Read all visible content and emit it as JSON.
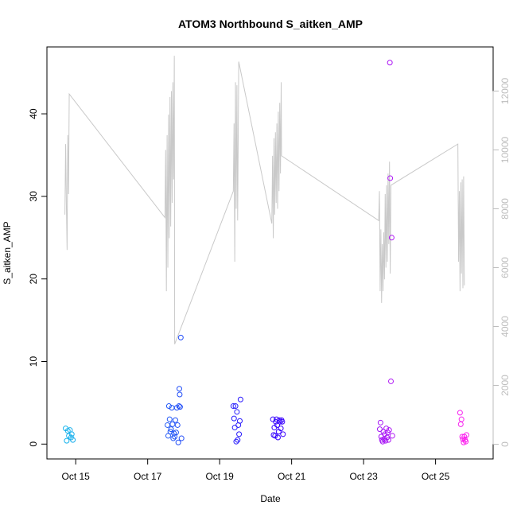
{
  "chart_data": {
    "type": "scatter",
    "title": "ATOM3 Northbound S_aitken_AMP",
    "xlabel": "Date",
    "ylabel": "S_aitken_AMP",
    "xlim": [
      14.2,
      26.6
    ],
    "ylim": [
      -1.8,
      48.1
    ],
    "y2lim": [
      -500,
      13500
    ],
    "x_ticks": [
      15,
      17,
      19,
      21,
      23,
      25
    ],
    "x_tick_labels": [
      "Oct 15",
      "Oct 17",
      "Oct 19",
      "Oct 21",
      "Oct 23",
      "Oct 25"
    ],
    "y_ticks": [
      0,
      10,
      20,
      30,
      40
    ],
    "y2_ticks": [
      0,
      2000,
      4000,
      6000,
      8000,
      10000,
      12000
    ],
    "colors": {
      "line": "#c9c9c9",
      "axis_right": "#bdbdbd",
      "point_start": "#17b5ec",
      "point_mid": "#2a00ff",
      "point_end": "#ff22ee"
    },
    "points": [
      {
        "x": 14.72,
        "y": 1.9
      },
      {
        "x": 14.75,
        "y": 0.4
      },
      {
        "x": 14.78,
        "y": 1.6
      },
      {
        "x": 14.81,
        "y": 1.0
      },
      {
        "x": 14.84,
        "y": 1.7
      },
      {
        "x": 14.87,
        "y": 0.8
      },
      {
        "x": 14.89,
        "y": 1.2
      },
      {
        "x": 14.92,
        "y": 0.5
      },
      {
        "x": 17.55,
        "y": 2.3
      },
      {
        "x": 17.57,
        "y": 1.0
      },
      {
        "x": 17.59,
        "y": 4.6
      },
      {
        "x": 17.61,
        "y": 3.0
      },
      {
        "x": 17.63,
        "y": 1.5
      },
      {
        "x": 17.65,
        "y": 1.8
      },
      {
        "x": 17.67,
        "y": 4.4
      },
      {
        "x": 17.69,
        "y": 2.4
      },
      {
        "x": 17.71,
        "y": 0.7
      },
      {
        "x": 17.73,
        "y": 1.3
      },
      {
        "x": 17.75,
        "y": 0.9
      },
      {
        "x": 17.77,
        "y": 2.9
      },
      {
        "x": 17.79,
        "y": 1.4
      },
      {
        "x": 17.81,
        "y": 4.4
      },
      {
        "x": 17.83,
        "y": 2.3
      },
      {
        "x": 17.85,
        "y": 0.2
      },
      {
        "x": 17.87,
        "y": 4.6
      },
      {
        "x": 17.88,
        "y": 6.7
      },
      {
        "x": 17.89,
        "y": 6.0
      },
      {
        "x": 17.9,
        "y": 4.5
      },
      {
        "x": 17.92,
        "y": 12.9
      },
      {
        "x": 17.94,
        "y": 0.7
      },
      {
        "x": 19.38,
        "y": 4.6
      },
      {
        "x": 19.4,
        "y": 3.1
      },
      {
        "x": 19.42,
        "y": 2.0
      },
      {
        "x": 19.44,
        "y": 4.6
      },
      {
        "x": 19.46,
        "y": 0.3
      },
      {
        "x": 19.48,
        "y": 3.9
      },
      {
        "x": 19.5,
        "y": 0.5
      },
      {
        "x": 19.52,
        "y": 2.3
      },
      {
        "x": 19.54,
        "y": 1.2
      },
      {
        "x": 19.56,
        "y": 2.8
      },
      {
        "x": 19.58,
        "y": 5.4
      },
      {
        "x": 20.48,
        "y": 3.0
      },
      {
        "x": 20.5,
        "y": 1.1
      },
      {
        "x": 20.52,
        "y": 2.0
      },
      {
        "x": 20.54,
        "y": 1.0
      },
      {
        "x": 20.56,
        "y": 2.7
      },
      {
        "x": 20.58,
        "y": 3.0
      },
      {
        "x": 20.6,
        "y": 2.3
      },
      {
        "x": 20.62,
        "y": 0.8
      },
      {
        "x": 20.64,
        "y": 1.5
      },
      {
        "x": 20.66,
        "y": 2.9
      },
      {
        "x": 20.68,
        "y": 2.7
      },
      {
        "x": 20.7,
        "y": 1.9
      },
      {
        "x": 20.72,
        "y": 2.9
      },
      {
        "x": 20.74,
        "y": 2.7
      },
      {
        "x": 20.76,
        "y": 1.2
      },
      {
        "x": 23.45,
        "y": 1.8
      },
      {
        "x": 23.47,
        "y": 2.6
      },
      {
        "x": 23.49,
        "y": 0.9
      },
      {
        "x": 23.51,
        "y": 0.5
      },
      {
        "x": 23.53,
        "y": 0.3
      },
      {
        "x": 23.55,
        "y": 1.5
      },
      {
        "x": 23.57,
        "y": 0.6
      },
      {
        "x": 23.59,
        "y": 1.2
      },
      {
        "x": 23.61,
        "y": 0.4
      },
      {
        "x": 23.63,
        "y": 1.9
      },
      {
        "x": 23.65,
        "y": 0.8
      },
      {
        "x": 23.67,
        "y": 1.4
      },
      {
        "x": 23.69,
        "y": 0.5
      },
      {
        "x": 23.71,
        "y": 1.7
      },
      {
        "x": 23.73,
        "y": 46.2
      },
      {
        "x": 23.74,
        "y": 32.2
      },
      {
        "x": 23.76,
        "y": 7.6
      },
      {
        "x": 23.78,
        "y": 25.0
      },
      {
        "x": 23.8,
        "y": 1.0
      },
      {
        "x": 25.68,
        "y": 3.8
      },
      {
        "x": 25.7,
        "y": 2.4
      },
      {
        "x": 25.72,
        "y": 3.0
      },
      {
        "x": 25.74,
        "y": 0.9
      },
      {
        "x": 25.76,
        "y": 0.6
      },
      {
        "x": 25.78,
        "y": 0.2
      },
      {
        "x": 25.8,
        "y": 0.9
      },
      {
        "x": 25.82,
        "y": 0.5
      },
      {
        "x": 25.84,
        "y": 0.3
      },
      {
        "x": 25.86,
        "y": 1.1
      }
    ],
    "line_y2": [
      {
        "x": 14.7,
        "y": 7800
      },
      {
        "x": 14.72,
        "y": 10200
      },
      {
        "x": 14.74,
        "y": 8200
      },
      {
        "x": 14.76,
        "y": 6600
      },
      {
        "x": 14.78,
        "y": 10500
      },
      {
        "x": 14.8,
        "y": 8500
      },
      {
        "x": 14.82,
        "y": 11900
      },
      {
        "x": 17.48,
        "y": 7700
      },
      {
        "x": 17.5,
        "y": 10000
      },
      {
        "x": 17.52,
        "y": 5200
      },
      {
        "x": 17.54,
        "y": 10500
      },
      {
        "x": 17.56,
        "y": 6000
      },
      {
        "x": 17.58,
        "y": 11200
      },
      {
        "x": 17.6,
        "y": 7000
      },
      {
        "x": 17.62,
        "y": 11800
      },
      {
        "x": 17.64,
        "y": 7400
      },
      {
        "x": 17.66,
        "y": 12000
      },
      {
        "x": 17.68,
        "y": 8200
      },
      {
        "x": 17.7,
        "y": 12300
      },
      {
        "x": 17.72,
        "y": 9000
      },
      {
        "x": 17.74,
        "y": 13200
      },
      {
        "x": 17.75,
        "y": 3400
      },
      {
        "x": 19.38,
        "y": 8600
      },
      {
        "x": 19.4,
        "y": 10900
      },
      {
        "x": 19.42,
        "y": 6200
      },
      {
        "x": 19.44,
        "y": 12300
      },
      {
        "x": 19.46,
        "y": 8000
      },
      {
        "x": 19.48,
        "y": 12200
      },
      {
        "x": 19.5,
        "y": 7600
      },
      {
        "x": 19.53,
        "y": 13000
      },
      {
        "x": 20.45,
        "y": 7500
      },
      {
        "x": 20.47,
        "y": 9800
      },
      {
        "x": 20.49,
        "y": 7000
      },
      {
        "x": 20.51,
        "y": 10400
      },
      {
        "x": 20.53,
        "y": 7800
      },
      {
        "x": 20.55,
        "y": 10600
      },
      {
        "x": 20.57,
        "y": 8200
      },
      {
        "x": 20.59,
        "y": 10900
      },
      {
        "x": 20.61,
        "y": 8000
      },
      {
        "x": 20.63,
        "y": 11300
      },
      {
        "x": 20.65,
        "y": 8600
      },
      {
        "x": 20.67,
        "y": 11600
      },
      {
        "x": 20.69,
        "y": 9200
      },
      {
        "x": 20.71,
        "y": 12300
      },
      {
        "x": 20.72,
        "y": 9800
      },
      {
        "x": 23.42,
        "y": 7600
      },
      {
        "x": 23.44,
        "y": 8600
      },
      {
        "x": 23.46,
        "y": 5200
      },
      {
        "x": 23.48,
        "y": 7300
      },
      {
        "x": 23.5,
        "y": 4800
      },
      {
        "x": 23.52,
        "y": 6800
      },
      {
        "x": 23.54,
        "y": 5200
      },
      {
        "x": 23.56,
        "y": 7200
      },
      {
        "x": 23.58,
        "y": 5600
      },
      {
        "x": 23.6,
        "y": 8500
      },
      {
        "x": 23.62,
        "y": 6000
      },
      {
        "x": 23.64,
        "y": 8800
      },
      {
        "x": 23.66,
        "y": 6200
      },
      {
        "x": 23.68,
        "y": 9200
      },
      {
        "x": 23.7,
        "y": 6800
      },
      {
        "x": 23.72,
        "y": 9600
      },
      {
        "x": 23.74,
        "y": 5800
      },
      {
        "x": 23.76,
        "y": 8800
      },
      {
        "x": 25.62,
        "y": 10200
      },
      {
        "x": 25.64,
        "y": 6200
      },
      {
        "x": 25.66,
        "y": 8600
      },
      {
        "x": 25.68,
        "y": 5200
      },
      {
        "x": 25.7,
        "y": 8900
      },
      {
        "x": 25.72,
        "y": 5800
      },
      {
        "x": 25.74,
        "y": 9000
      },
      {
        "x": 25.76,
        "y": 5300
      },
      {
        "x": 25.78,
        "y": 9100
      },
      {
        "x": 25.8,
        "y": 5400
      }
    ]
  }
}
